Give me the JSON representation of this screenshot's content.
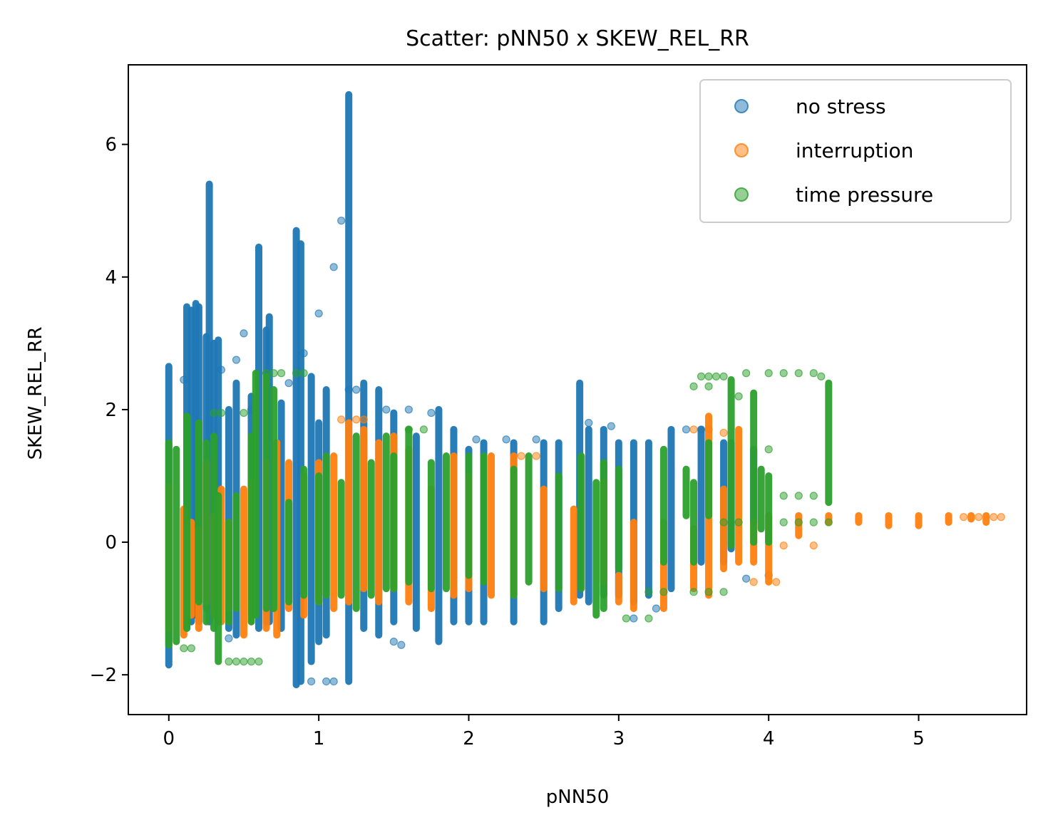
{
  "chart_data": {
    "type": "scatter",
    "title": "Scatter: pNN50 x SKEW_REL_RR",
    "xlabel": "pNN50",
    "ylabel": "SKEW_REL_RR",
    "xlim": [
      -0.27,
      5.72
    ],
    "ylim": [
      -2.6,
      7.2
    ],
    "xticks": [
      0,
      1,
      2,
      3,
      4,
      5
    ],
    "xtick_labels": [
      "0",
      "1",
      "2",
      "3",
      "4",
      "5"
    ],
    "yticks": [
      -2,
      0,
      2,
      4,
      6
    ],
    "ytick_labels": [
      "−2",
      "0",
      "2",
      "4",
      "6"
    ],
    "grid": false,
    "legend_position": "top-right",
    "legend": [
      "no stress",
      "interruption",
      "time pressure"
    ],
    "series": [
      {
        "name": "no stress",
        "color": "#1f77b4",
        "strips": [
          [
            0.0,
            -1.85,
            2.65
          ],
          [
            0.12,
            -1.3,
            3.55
          ],
          [
            0.15,
            -1.2,
            3.5
          ],
          [
            0.18,
            -1.1,
            3.6
          ],
          [
            0.2,
            -1.2,
            3.55
          ],
          [
            0.25,
            -1.0,
            3.1
          ],
          [
            0.27,
            -1.2,
            5.4
          ],
          [
            0.3,
            -1.0,
            3.0
          ],
          [
            0.33,
            -1.2,
            3.05
          ],
          [
            0.4,
            -1.3,
            2.0
          ],
          [
            0.45,
            -1.4,
            2.4
          ],
          [
            0.55,
            -1.1,
            2.2
          ],
          [
            0.6,
            -1.3,
            4.45
          ],
          [
            0.65,
            -1.2,
            3.2
          ],
          [
            0.67,
            -1.2,
            3.4
          ],
          [
            0.75,
            -1.3,
            2.1
          ],
          [
            0.85,
            -2.15,
            4.7
          ],
          [
            0.88,
            -2.1,
            4.5
          ],
          [
            0.95,
            -1.8,
            2.5
          ],
          [
            1.0,
            -1.5,
            1.8
          ],
          [
            1.05,
            -1.4,
            2.3
          ],
          [
            1.2,
            -2.1,
            6.75
          ],
          [
            1.3,
            -1.3,
            2.4
          ],
          [
            1.4,
            -1.4,
            2.3
          ],
          [
            1.5,
            -1.2,
            1.95
          ],
          [
            1.65,
            -1.3,
            1.6
          ],
          [
            1.8,
            -1.5,
            2.0
          ],
          [
            1.9,
            -1.2,
            1.7
          ],
          [
            2.0,
            -1.2,
            1.4
          ],
          [
            2.1,
            -1.2,
            1.5
          ],
          [
            2.3,
            -1.2,
            1.5
          ],
          [
            2.5,
            -1.2,
            1.5
          ],
          [
            2.6,
            -1.0,
            1.5
          ],
          [
            2.74,
            -0.8,
            2.4
          ],
          [
            2.8,
            -0.9,
            1.7
          ],
          [
            2.9,
            -0.8,
            1.7
          ],
          [
            3.0,
            -0.8,
            1.5
          ],
          [
            3.1,
            -0.9,
            1.5
          ],
          [
            3.2,
            -0.8,
            1.5
          ],
          [
            3.35,
            -0.7,
            1.7
          ],
          [
            3.55,
            -0.3,
            1.7
          ],
          [
            3.7,
            -0.3,
            1.5
          ],
          [
            3.75,
            -0.1,
            1.5
          ],
          [
            3.9,
            0.3,
            1.4
          ]
        ],
        "scatter": [
          [
            1.1,
            4.15
          ],
          [
            1.15,
            4.85
          ],
          [
            1.0,
            3.45
          ],
          [
            0.9,
            2.85
          ],
          [
            0.5,
            3.15
          ],
          [
            0.45,
            2.75
          ],
          [
            0.55,
            2.0
          ],
          [
            0.95,
            -2.1
          ],
          [
            1.05,
            -2.1
          ],
          [
            1.1,
            -2.1
          ],
          [
            1.45,
            2.0
          ],
          [
            1.6,
            2.0
          ],
          [
            1.75,
            1.95
          ],
          [
            2.8,
            1.8
          ],
          [
            2.95,
            1.75
          ],
          [
            3.45,
            1.7
          ],
          [
            3.55,
            1.7
          ],
          [
            3.85,
            -0.55
          ],
          [
            4.0,
            -0.5
          ],
          [
            2.05,
            1.55
          ],
          [
            2.25,
            1.55
          ],
          [
            2.45,
            1.55
          ],
          [
            1.5,
            -1.5
          ],
          [
            1.55,
            -1.55
          ],
          [
            3.1,
            -1.15
          ],
          [
            3.25,
            -1.0
          ],
          [
            0.1,
            2.45
          ],
          [
            0.35,
            2.6
          ],
          [
            0.4,
            -1.45
          ],
          [
            1.2,
            2.3
          ],
          [
            1.25,
            2.3
          ],
          [
            0.8,
            2.4
          ]
        ]
      },
      {
        "name": "interruption",
        "color": "#ff7f0e",
        "strips": [
          [
            0.0,
            -1.3,
            0.85
          ],
          [
            0.1,
            -1.4,
            0.5
          ],
          [
            0.15,
            -1.1,
            0.3
          ],
          [
            0.2,
            -1.3,
            0.2
          ],
          [
            0.25,
            -0.9,
            1.2
          ],
          [
            0.3,
            -1.1,
            0.4
          ],
          [
            0.35,
            -1.2,
            0.8
          ],
          [
            0.4,
            -1.0,
            0.3
          ],
          [
            0.5,
            -1.4,
            0.8
          ],
          [
            0.55,
            -1.2,
            0.9
          ],
          [
            0.65,
            -1.3,
            1.2
          ],
          [
            0.72,
            -1.4,
            1.5
          ],
          [
            0.8,
            -1.0,
            1.2
          ],
          [
            0.9,
            -1.1,
            1.0
          ],
          [
            1.0,
            -0.9,
            1.2
          ],
          [
            1.1,
            -1.0,
            1.3
          ],
          [
            1.2,
            -0.9,
            1.8
          ],
          [
            1.3,
            -0.7,
            1.7
          ],
          [
            1.4,
            -0.9,
            1.5
          ],
          [
            1.5,
            -0.7,
            1.6
          ],
          [
            1.6,
            -0.9,
            1.4
          ],
          [
            1.75,
            -1.0,
            0.8
          ],
          [
            1.9,
            -0.8,
            1.3
          ],
          [
            2.0,
            -0.7,
            1.0
          ],
          [
            2.15,
            -0.8,
            1.3
          ],
          [
            2.3,
            -0.8,
            1.3
          ],
          [
            2.5,
            -0.7,
            0.8
          ],
          [
            2.7,
            -0.9,
            0.5
          ],
          [
            2.9,
            -0.6,
            0.9
          ],
          [
            3.0,
            -0.9,
            -0.5
          ],
          [
            3.1,
            -1.0,
            0.3
          ],
          [
            3.3,
            -1.0,
            0.3
          ],
          [
            3.5,
            -0.7,
            0.2
          ],
          [
            3.6,
            -0.8,
            1.9
          ],
          [
            3.7,
            -0.4,
            0.8
          ],
          [
            3.8,
            -0.3,
            1.7
          ],
          [
            3.9,
            -0.3,
            0.3
          ],
          [
            4.0,
            -0.6,
            0.4
          ],
          [
            4.2,
            0.1,
            0.4
          ],
          [
            4.4,
            0.3,
            0.4
          ],
          [
            4.6,
            0.3,
            0.4
          ],
          [
            4.8,
            0.25,
            0.4
          ],
          [
            5.0,
            0.25,
            0.4
          ],
          [
            5.2,
            0.3,
            0.4
          ],
          [
            5.35,
            0.35,
            0.4
          ],
          [
            5.45,
            0.3,
            0.4
          ]
        ],
        "scatter": [
          [
            3.5,
            1.7
          ],
          [
            3.6,
            1.7
          ],
          [
            3.7,
            1.65
          ],
          [
            3.9,
            -0.6
          ],
          [
            4.05,
            -0.6
          ],
          [
            5.3,
            0.38
          ],
          [
            5.4,
            0.38
          ],
          [
            5.5,
            0.38
          ],
          [
            5.55,
            0.38
          ],
          [
            1.15,
            1.85
          ],
          [
            1.25,
            1.85
          ],
          [
            1.3,
            1.85
          ],
          [
            2.35,
            1.3
          ],
          [
            2.45,
            1.3
          ],
          [
            4.1,
            -0.05
          ],
          [
            4.3,
            -0.05
          ]
        ]
      },
      {
        "name": "time pressure",
        "color": "#2ca02c",
        "strips": [
          [
            0.0,
            -1.55,
            1.5
          ],
          [
            0.05,
            -1.5,
            1.4
          ],
          [
            0.12,
            -1.3,
            1.9
          ],
          [
            0.2,
            -0.9,
            1.8
          ],
          [
            0.25,
            -1.2,
            1.5
          ],
          [
            0.3,
            -1.3,
            1.6
          ],
          [
            0.33,
            -1.8,
            0.7
          ],
          [
            0.4,
            -1.2,
            0.3
          ],
          [
            0.45,
            -1.0,
            0.7
          ],
          [
            0.55,
            -1.2,
            1.6
          ],
          [
            0.58,
            -1.1,
            2.55
          ],
          [
            0.65,
            -1.0,
            2.5
          ],
          [
            0.7,
            -1.0,
            2.3
          ],
          [
            0.8,
            -0.9,
            0.6
          ],
          [
            0.9,
            -0.8,
            1.1
          ],
          [
            1.0,
            -0.9,
            1.0
          ],
          [
            1.05,
            -0.8,
            1.3
          ],
          [
            1.15,
            -0.8,
            0.9
          ],
          [
            1.25,
            -1.0,
            1.6
          ],
          [
            1.35,
            -0.8,
            1.2
          ],
          [
            1.45,
            -0.7,
            1.6
          ],
          [
            1.5,
            -0.7,
            1.3
          ],
          [
            1.6,
            -0.6,
            1.7
          ],
          [
            1.75,
            -0.7,
            1.2
          ],
          [
            1.85,
            -0.7,
            1.3
          ],
          [
            2.0,
            -0.5,
            1.3
          ],
          [
            2.1,
            -0.6,
            1.3
          ],
          [
            2.3,
            -0.8,
            1.1
          ],
          [
            2.4,
            -0.6,
            1.3
          ],
          [
            2.6,
            -0.7,
            1.0
          ],
          [
            2.75,
            -0.7,
            1.3
          ],
          [
            2.85,
            -1.1,
            0.9
          ],
          [
            2.9,
            -1.0,
            1.2
          ],
          [
            3.0,
            -0.4,
            1.1
          ],
          [
            3.3,
            -0.3,
            1.4
          ],
          [
            3.45,
            0.4,
            1.1
          ],
          [
            3.5,
            -0.3,
            0.9
          ],
          [
            3.6,
            0.4,
            1.5
          ],
          [
            3.75,
            -0.05,
            2.45
          ],
          [
            3.9,
            0.0,
            2.25
          ],
          [
            3.95,
            0.2,
            1.1
          ],
          [
            4.0,
            0.0,
            1.0
          ],
          [
            4.4,
            0.6,
            2.4
          ]
        ],
        "scatter": [
          [
            0.4,
            -1.8
          ],
          [
            0.45,
            -1.8
          ],
          [
            0.5,
            -1.8
          ],
          [
            0.55,
            -1.8
          ],
          [
            0.6,
            -1.8
          ],
          [
            0.65,
            2.55
          ],
          [
            0.7,
            2.55
          ],
          [
            0.75,
            2.55
          ],
          [
            0.85,
            2.55
          ],
          [
            0.9,
            2.55
          ],
          [
            3.55,
            2.5
          ],
          [
            3.6,
            2.5
          ],
          [
            3.65,
            2.5
          ],
          [
            3.7,
            2.5
          ],
          [
            4.0,
            2.55
          ],
          [
            4.1,
            2.55
          ],
          [
            4.2,
            2.55
          ],
          [
            4.3,
            2.55
          ],
          [
            4.35,
            2.5
          ],
          [
            3.85,
            2.55
          ],
          [
            3.8,
            2.2
          ],
          [
            3.5,
            2.35
          ],
          [
            3.6,
            2.35
          ],
          [
            4.0,
            1.4
          ],
          [
            4.1,
            0.7
          ],
          [
            4.2,
            0.7
          ],
          [
            4.3,
            0.7
          ],
          [
            3.5,
            -0.75
          ],
          [
            3.6,
            -0.75
          ],
          [
            3.7,
            -0.75
          ],
          [
            3.3,
            -0.75
          ],
          [
            3.2,
            -0.75
          ],
          [
            0.1,
            -1.6
          ],
          [
            0.15,
            -1.6
          ],
          [
            0.3,
            1.95
          ],
          [
            0.35,
            1.95
          ],
          [
            0.5,
            1.95
          ],
          [
            1.6,
            1.7
          ],
          [
            1.7,
            1.7
          ],
          [
            3.2,
            -1.15
          ],
          [
            3.05,
            -1.15
          ],
          [
            3.7,
            0.3
          ],
          [
            3.8,
            0.3
          ],
          [
            4.1,
            0.3
          ],
          [
            4.2,
            0.3
          ],
          [
            4.3,
            0.3
          ],
          [
            4.4,
            0.3
          ]
        ]
      }
    ]
  }
}
